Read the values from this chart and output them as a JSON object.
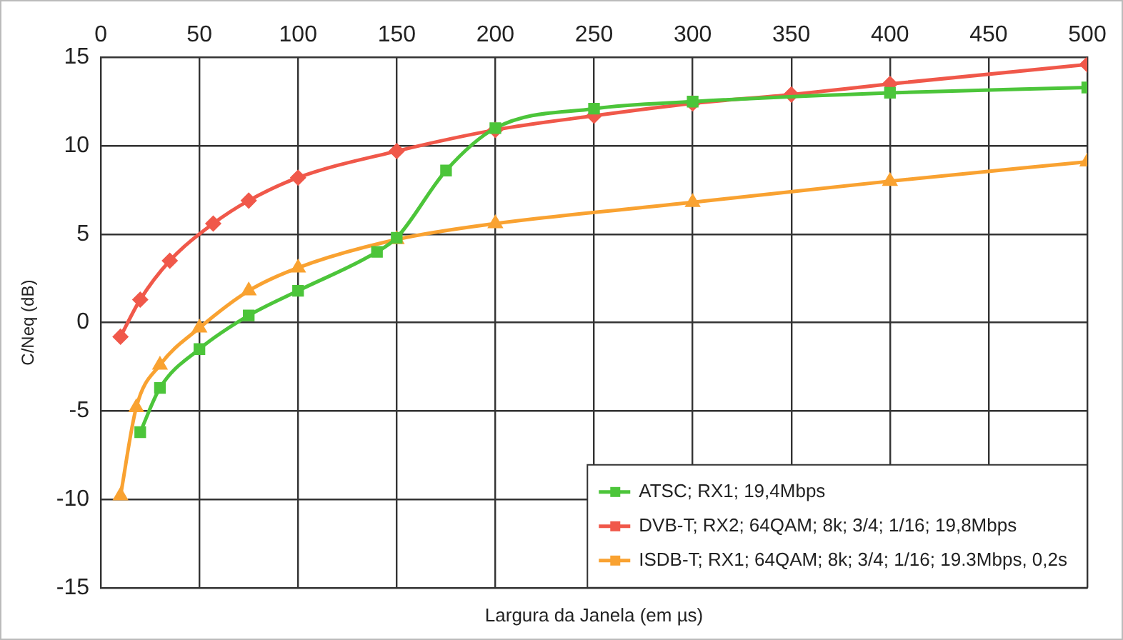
{
  "chart_data": {
    "type": "line",
    "xlabel": "Largura da Janela (em µs)",
    "ylabel": "C/Neq (dB)",
    "xlim": [
      0,
      500
    ],
    "xticks": [
      0,
      50,
      100,
      150,
      200,
      250,
      300,
      350,
      400,
      450,
      500
    ],
    "ylim": [
      -15,
      15
    ],
    "yticks": [
      -15,
      -10,
      -5,
      0,
      5,
      10,
      15
    ],
    "grid": true,
    "legend": "bottom right",
    "series": [
      {
        "name": "ATSC; RX1; 19,4Mbps",
        "color": "#4cc53a",
        "marker": "square",
        "x": [
          20,
          30,
          50,
          75,
          100,
          140,
          150,
          175,
          200,
          250,
          300,
          400,
          500
        ],
        "values": [
          -6.2,
          -3.7,
          -1.5,
          0.4,
          1.8,
          4.0,
          4.8,
          8.6,
          11.0,
          12.1,
          12.5,
          13.0,
          13.3
        ]
      },
      {
        "name": "DVB-T; RX2; 64QAM; 8k; 3/4; 1/16; 19,8Mbps",
        "color": "#f0584a",
        "marker": "diamond",
        "x": [
          10,
          20,
          35,
          57,
          75,
          100,
          150,
          200,
          250,
          300,
          350,
          400,
          500
        ],
        "values": [
          -0.8,
          1.3,
          3.5,
          5.6,
          6.9,
          8.2,
          9.7,
          10.9,
          11.7,
          12.4,
          12.9,
          13.5,
          14.6
        ]
      },
      {
        "name": "ISDB-T; RX1; 64QAM; 8k; 3/4; 1/16; 19.3Mbps, 0,2s",
        "color": "#f9a231",
        "marker": "triangle",
        "x": [
          10,
          18,
          30,
          50,
          75,
          100,
          150,
          200,
          300,
          400,
          500
        ],
        "values": [
          -9.8,
          -4.8,
          -2.4,
          -0.3,
          1.8,
          3.1,
          4.7,
          5.6,
          6.8,
          8.0,
          9.1
        ]
      }
    ]
  }
}
